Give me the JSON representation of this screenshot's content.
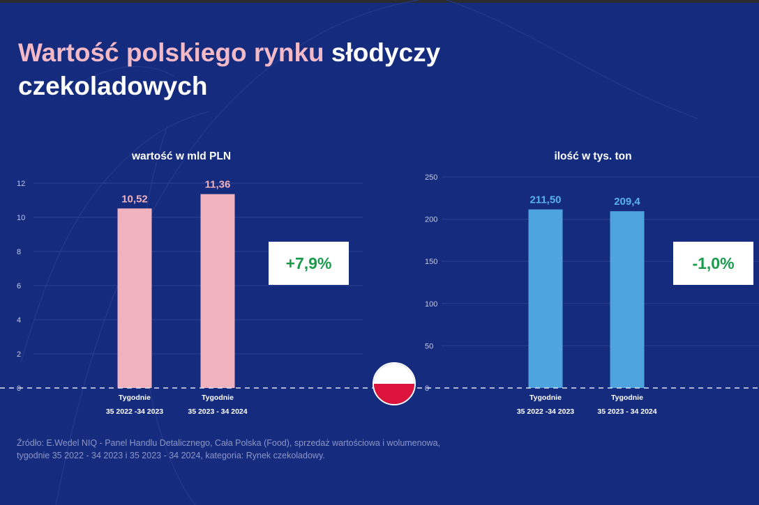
{
  "title": {
    "highlight": "Wartość polskiego rynku",
    "rest": " słodyczy czekoladowych"
  },
  "colors": {
    "background": "#152b7e",
    "title_pink": "#f3b9c6",
    "bar_value": "#f0b2bd",
    "bar_volume": "#4ea4de",
    "change_text": "#1a9b4c"
  },
  "chart_data": [
    {
      "type": "bar",
      "title": "wartość w mld PLN",
      "categories": [
        [
          "Tygodnie",
          "35 2022 -34 2023"
        ],
        [
          "Tygodnie",
          "35 2023 - 34 2024"
        ]
      ],
      "values": [
        10.52,
        11.36
      ],
      "value_labels": [
        "10,52",
        "11,36"
      ],
      "ylim": [
        0,
        12
      ],
      "yticks": [
        0,
        2,
        4,
        6,
        8,
        10,
        12
      ],
      "grid": true,
      "bar_color": "#f0b2bd",
      "label_color": "#f0b2bd",
      "change": "+7,9%"
    },
    {
      "type": "bar",
      "title": "ilość w tys. ton",
      "categories": [
        [
          "Tygodnie",
          "35 2022 -34 2023"
        ],
        [
          "Tygodnie",
          "35 2023 - 34 2024"
        ]
      ],
      "values": [
        211.5,
        209.4
      ],
      "value_labels": [
        "211,50",
        "209,4"
      ],
      "ylim": [
        0,
        250
      ],
      "yticks": [
        0,
        50,
        100,
        150,
        200,
        250
      ],
      "grid": true,
      "bar_color": "#4ea4de",
      "label_color": "#59b1ec",
      "change": "-1,0%"
    }
  ],
  "source_lines": [
    "Źródło: E.Wedel NIQ - Panel Handlu Detalicznego, Cała Polska (Food), sprzedaż wartościowa i wolumenowa,",
    "tygodnie 35 2022 - 34 2023 i 35 2023 - 34 2024, kategoria: Rynek czekoladowy."
  ]
}
